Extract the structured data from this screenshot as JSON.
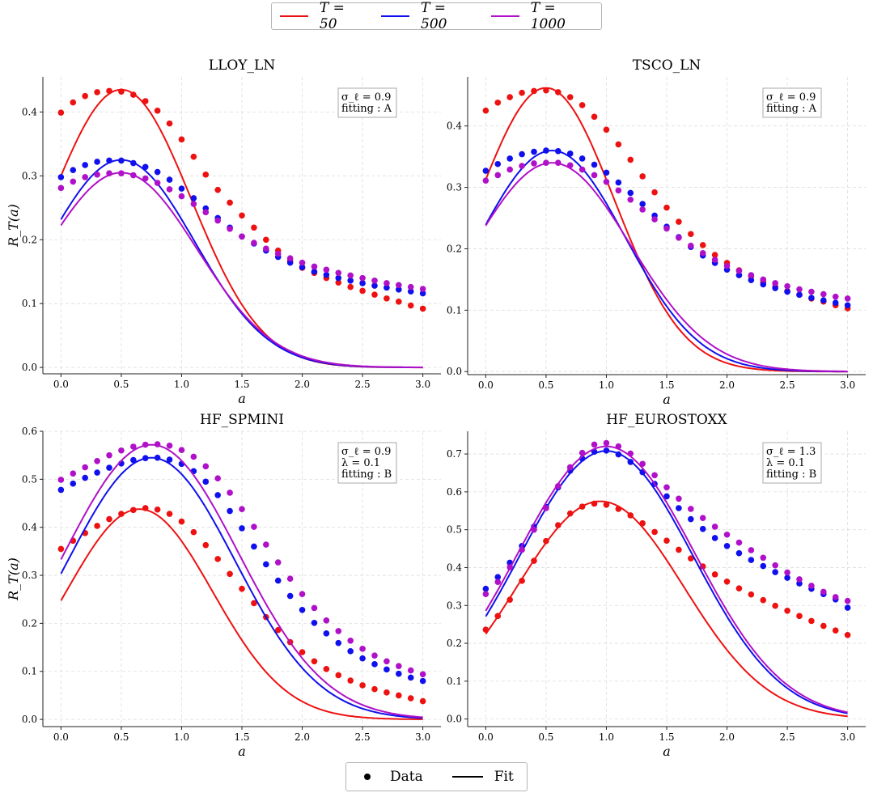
{
  "legend_top": {
    "entries": [
      {
        "label": "T = 50",
        "color": "#ee1111"
      },
      {
        "label": "T = 500",
        "color": "#1010ee"
      },
      {
        "label": "T = 1000",
        "color": "#b010c8"
      }
    ]
  },
  "legend_bottom": {
    "data_label": "Data",
    "fit_label": "Fit"
  },
  "chart_data": [
    {
      "type": "scatter",
      "title": "LLOY_LN",
      "xlabel": "a",
      "ylabel": "R_T(a)",
      "xlim": [
        -0.15,
        3.15
      ],
      "ylim": [
        -0.01,
        0.455
      ],
      "xticks": [
        0.0,
        0.5,
        1.0,
        1.5,
        2.0,
        2.5,
        3.0
      ],
      "yticks": [
        0.0,
        0.1,
        0.2,
        0.3,
        0.4
      ],
      "ytick_labels": [
        "0.0",
        "0.1",
        "0.2",
        "0.3",
        "0.4"
      ],
      "annotation": [
        "σ_ℓ = 0.9",
        "fitting : A"
      ],
      "series": [
        {
          "name": "T = 50",
          "color": "#ee1111",
          "data_y": [
            0.399,
            0.415,
            0.425,
            0.431,
            0.433,
            0.432,
            0.427,
            0.417,
            0.402,
            0.382,
            0.357,
            0.33,
            0.302,
            0.278,
            0.258,
            0.238,
            0.219,
            0.2,
            0.183,
            0.167,
            0.156,
            0.148,
            0.14,
            0.133,
            0.126,
            0.12,
            0.114,
            0.108,
            0.103,
            0.097,
            0.092
          ],
          "fit": {
            "peak": 0.435,
            "center": 0.5,
            "width": 0.82
          }
        },
        {
          "name": "T = 500",
          "color": "#1010ee",
          "data_y": [
            0.298,
            0.309,
            0.317,
            0.322,
            0.324,
            0.324,
            0.32,
            0.314,
            0.306,
            0.294,
            0.28,
            0.265,
            0.249,
            0.234,
            0.219,
            0.205,
            0.194,
            0.183,
            0.173,
            0.164,
            0.157,
            0.15,
            0.145,
            0.14,
            0.136,
            0.132,
            0.128,
            0.125,
            0.122,
            0.119,
            0.116
          ],
          "fit": {
            "peak": 0.325,
            "center": 0.5,
            "width": 0.86
          }
        },
        {
          "name": "T = 1000",
          "color": "#b010c8",
          "data_y": [
            0.281,
            0.291,
            0.298,
            0.302,
            0.304,
            0.304,
            0.301,
            0.296,
            0.289,
            0.279,
            0.268,
            0.256,
            0.243,
            0.23,
            0.217,
            0.205,
            0.195,
            0.186,
            0.178,
            0.171,
            0.164,
            0.158,
            0.153,
            0.148,
            0.144,
            0.14,
            0.136,
            0.132,
            0.129,
            0.126,
            0.123
          ],
          "fit": {
            "peak": 0.305,
            "center": 0.5,
            "width": 0.89
          }
        }
      ]
    },
    {
      "type": "scatter",
      "title": "TSCO_LN",
      "xlabel": "a",
      "ylabel": "",
      "xlim": [
        -0.15,
        3.15
      ],
      "ylim": [
        -0.005,
        0.48
      ],
      "xticks": [
        0.0,
        0.5,
        1.0,
        1.5,
        2.0,
        2.5,
        3.0
      ],
      "yticks": [
        0.0,
        0.1,
        0.2,
        0.3,
        0.4
      ],
      "ytick_labels": [
        "0.0",
        "0.1",
        "0.2",
        "0.3",
        "0.4"
      ],
      "annotation": [
        "σ_ℓ = 0.9",
        "fitting : A"
      ],
      "series": [
        {
          "name": "T = 50",
          "color": "#ee1111",
          "data_y": [
            0.425,
            0.438,
            0.447,
            0.454,
            0.457,
            0.458,
            0.455,
            0.447,
            0.434,
            0.415,
            0.394,
            0.37,
            0.345,
            0.318,
            0.292,
            0.267,
            0.244,
            0.224,
            0.206,
            0.19,
            0.177,
            0.165,
            0.155,
            0.146,
            0.138,
            0.131,
            0.125,
            0.119,
            0.114,
            0.108,
            0.103
          ],
          "fit": {
            "peak": 0.462,
            "center": 0.5,
            "width": 0.8
          }
        },
        {
          "name": "T = 500",
          "color": "#1010ee",
          "data_y": [
            0.327,
            0.338,
            0.347,
            0.354,
            0.358,
            0.36,
            0.359,
            0.355,
            0.347,
            0.337,
            0.324,
            0.308,
            0.291,
            0.273,
            0.254,
            0.236,
            0.219,
            0.203,
            0.189,
            0.177,
            0.166,
            0.157,
            0.149,
            0.142,
            0.136,
            0.13,
            0.125,
            0.12,
            0.116,
            0.112,
            0.108
          ],
          "fit": {
            "peak": 0.36,
            "center": 0.55,
            "width": 0.86
          }
        },
        {
          "name": "T = 1000",
          "color": "#b010c8",
          "data_y": [
            0.311,
            0.32,
            0.329,
            0.335,
            0.339,
            0.34,
            0.34,
            0.336,
            0.329,
            0.32,
            0.309,
            0.295,
            0.28,
            0.264,
            0.248,
            0.233,
            0.218,
            0.205,
            0.193,
            0.182,
            0.172,
            0.164,
            0.157,
            0.15,
            0.144,
            0.139,
            0.134,
            0.13,
            0.126,
            0.122,
            0.119
          ],
          "fit": {
            "peak": 0.34,
            "center": 0.55,
            "width": 0.92
          }
        }
      ]
    },
    {
      "type": "scatter",
      "title": "HF_SPMINI",
      "xlabel": "a",
      "ylabel": "R_T(a)",
      "xlim": [
        -0.15,
        3.15
      ],
      "ylim": [
        -0.015,
        0.6
      ],
      "xticks": [
        0.0,
        0.5,
        1.0,
        1.5,
        2.0,
        2.5,
        3.0
      ],
      "yticks": [
        0.0,
        0.1,
        0.2,
        0.3,
        0.4,
        0.5,
        0.6
      ],
      "ytick_labels": [
        "0.0",
        "0.1",
        "0.2",
        "0.3",
        "0.4",
        "0.5",
        "0.6"
      ],
      "annotation": [
        "σ_ℓ = 0.9",
        "λ = 0.1",
        "fitting : B"
      ],
      "series": [
        {
          "name": "T = 50",
          "color": "#ee1111",
          "data_y": [
            0.355,
            0.372,
            0.388,
            0.403,
            0.417,
            0.428,
            0.436,
            0.44,
            0.437,
            0.428,
            0.412,
            0.39,
            0.363,
            0.334,
            0.303,
            0.272,
            0.242,
            0.213,
            0.186,
            0.161,
            0.14,
            0.121,
            0.105,
            0.092,
            0.081,
            0.071,
            0.063,
            0.056,
            0.05,
            0.044,
            0.038
          ],
          "fit": {
            "peak": 0.438,
            "center": 0.65,
            "width": 0.86
          }
        },
        {
          "name": "T = 500",
          "color": "#1010ee",
          "data_y": [
            0.478,
            0.491,
            0.503,
            0.514,
            0.524,
            0.533,
            0.54,
            0.544,
            0.545,
            0.541,
            0.532,
            0.517,
            0.495,
            0.467,
            0.434,
            0.398,
            0.36,
            0.323,
            0.289,
            0.257,
            0.228,
            0.201,
            0.179,
            0.159,
            0.142,
            0.127,
            0.115,
            0.104,
            0.095,
            0.087,
            0.08
          ],
          "fit": {
            "peak": 0.545,
            "center": 0.75,
            "width": 0.98
          }
        },
        {
          "name": "T = 1000",
          "color": "#b010c8",
          "data_y": [
            0.499,
            0.512,
            0.525,
            0.538,
            0.55,
            0.56,
            0.568,
            0.572,
            0.573,
            0.57,
            0.561,
            0.547,
            0.527,
            0.502,
            0.472,
            0.438,
            0.401,
            0.364,
            0.327,
            0.293,
            0.261,
            0.232,
            0.206,
            0.184,
            0.164,
            0.147,
            0.133,
            0.121,
            0.111,
            0.102,
            0.094
          ],
          "fit": {
            "peak": 0.572,
            "center": 0.75,
            "width": 1.02
          }
        }
      ]
    },
    {
      "type": "scatter",
      "title": "HF_EUROSTOXX",
      "xlabel": "a",
      "ylabel": "",
      "xlim": [
        -0.15,
        3.15
      ],
      "ylim": [
        -0.02,
        0.76
      ],
      "xticks": [
        0.0,
        0.5,
        1.0,
        1.5,
        2.0,
        2.5,
        3.0
      ],
      "yticks": [
        0.0,
        0.1,
        0.2,
        0.3,
        0.4,
        0.5,
        0.6,
        0.7
      ],
      "ytick_labels": [
        "0.0",
        "0.1",
        "0.2",
        "0.3",
        "0.4",
        "0.5",
        "0.6",
        "0.7"
      ],
      "annotation": [
        "σ_ℓ = 1.3",
        "λ = 0.1",
        "fitting : B"
      ],
      "series": [
        {
          "name": "T = 50",
          "color": "#ee1111",
          "data_y": [
            0.236,
            0.272,
            0.315,
            0.365,
            0.418,
            0.47,
            0.512,
            0.543,
            0.561,
            0.569,
            0.566,
            0.555,
            0.538,
            0.517,
            0.494,
            0.471,
            0.447,
            0.424,
            0.403,
            0.382,
            0.363,
            0.345,
            0.329,
            0.314,
            0.299,
            0.286,
            0.272,
            0.259,
            0.246,
            0.234,
            0.222
          ],
          "fit": {
            "peak": 0.575,
            "center": 0.95,
            "width": 0.98
          }
        },
        {
          "name": "T = 500",
          "color": "#1010ee",
          "data_y": [
            0.344,
            0.375,
            0.413,
            0.457,
            0.508,
            0.56,
            0.612,
            0.656,
            0.688,
            0.706,
            0.709,
            0.699,
            0.679,
            0.652,
            0.621,
            0.588,
            0.557,
            0.528,
            0.502,
            0.478,
            0.457,
            0.438,
            0.42,
            0.404,
            0.388,
            0.373,
            0.358,
            0.344,
            0.33,
            0.316,
            0.294
          ],
          "fit": {
            "peak": 0.708,
            "center": 1.0,
            "width": 1.02
          }
        },
        {
          "name": "T = 1000",
          "color": "#b010c8",
          "data_y": [
            0.33,
            0.362,
            0.401,
            0.447,
            0.5,
            0.557,
            0.615,
            0.665,
            0.703,
            0.725,
            0.729,
            0.72,
            0.701,
            0.674,
            0.644,
            0.612,
            0.582,
            0.555,
            0.531,
            0.508,
            0.487,
            0.466,
            0.446,
            0.426,
            0.406,
            0.387,
            0.369,
            0.352,
            0.336,
            0.322,
            0.312
          ],
          "fit": {
            "peak": 0.72,
            "center": 1.0,
            "width": 1.04
          }
        }
      ]
    }
  ]
}
